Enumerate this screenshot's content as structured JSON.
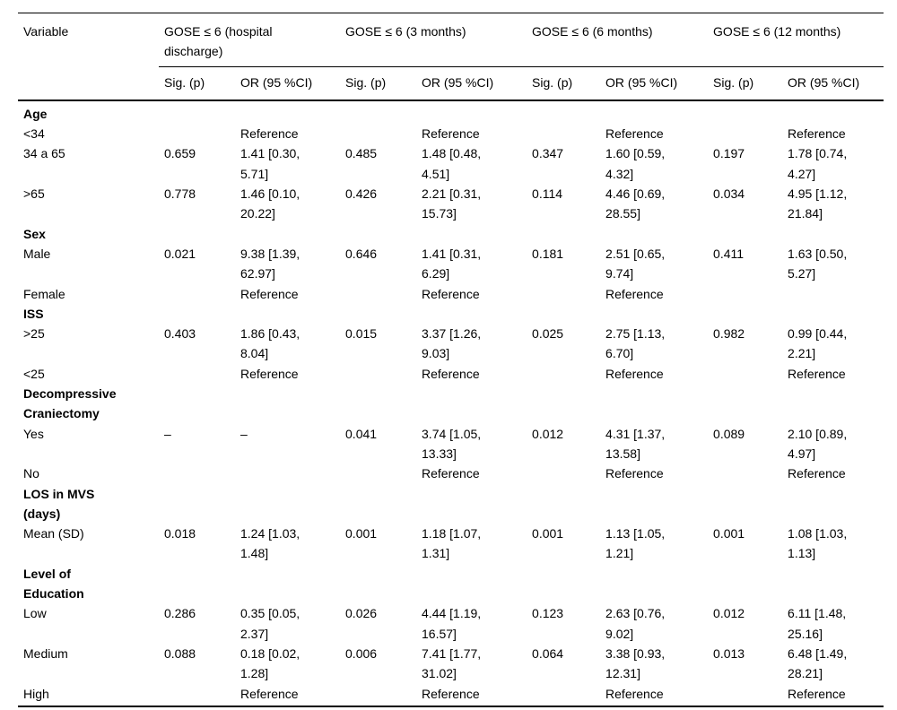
{
  "table": {
    "variable_header": "Variable",
    "col_groups": [
      {
        "label": "GOSE ≤ 6 (hospital\ndischarge)"
      },
      {
        "label": "GOSE ≤ 6 (3 months)"
      },
      {
        "label": "GOSE ≤ 6 (6 months)"
      },
      {
        "label": "GOSE ≤ 6 (12 months)"
      }
    ],
    "sub_headers": [
      "Sig. (p)",
      "OR (95 %CI)"
    ],
    "rows": [
      {
        "label": "Age",
        "section": true
      },
      {
        "label": "<34",
        "cells": [
          "",
          "Reference",
          "",
          "Reference",
          "",
          "Reference",
          "",
          "Reference"
        ]
      },
      {
        "label": "34 a 65",
        "cells": [
          "0.659",
          "1.41 [0.30,\n5.71]",
          "0.485",
          "1.48 [0.48,\n4.51]",
          "0.347",
          "1.60 [0.59,\n4.32]",
          "0.197",
          "1.78 [0.74,\n4.27]"
        ]
      },
      {
        "label": ">65",
        "cells": [
          "0.778",
          "1.46 [0.10,\n20.22]",
          "0.426",
          "2.21 [0.31,\n15.73]",
          "0.114",
          "4.46 [0.69,\n28.55]",
          "0.034",
          "4.95 [1.12,\n21.84]"
        ]
      },
      {
        "label": "Sex",
        "section": true
      },
      {
        "label": "Male",
        "cells": [
          "0.021",
          "9.38 [1.39,\n62.97]",
          "0.646",
          "1.41 [0.31,\n6.29]",
          "0.181",
          "2.51 [0.65,\n9.74]",
          "0.411",
          "1.63 [0.50,\n5.27]"
        ]
      },
      {
        "label": "Female",
        "cells": [
          "",
          "Reference",
          "",
          "Reference",
          "",
          "Reference",
          "",
          ""
        ]
      },
      {
        "label": "ISS",
        "section": true
      },
      {
        "label": ">25",
        "cells": [
          "0.403",
          "1.86 [0.43,\n8.04]",
          "0.015",
          "3.37 [1.26,\n9.03]",
          "0.025",
          "2.75 [1.13,\n6.70]",
          "0.982",
          "0.99 [0.44,\n2.21]"
        ]
      },
      {
        "label": "<25",
        "cells": [
          "",
          "Reference",
          "",
          "Reference",
          "",
          "Reference",
          "",
          "Reference"
        ]
      },
      {
        "label": "Decompressive\nCraniectomy",
        "section": true
      },
      {
        "label": "Yes",
        "cells": [
          "–",
          "–",
          "0.041",
          "3.74 [1.05,\n13.33]",
          "0.012",
          "4.31 [1.37,\n13.58]",
          "0.089",
          "2.10 [0.89,\n4.97]"
        ]
      },
      {
        "label": "No",
        "cells": [
          "",
          "",
          "",
          "Reference",
          "",
          "Reference",
          "",
          "Reference"
        ]
      },
      {
        "label": "LOS in MVS\n(days)",
        "section": true
      },
      {
        "label": "Mean (SD)",
        "cells": [
          "0.018",
          "1.24 [1.03,\n1.48]",
          "0.001",
          "1.18 [1.07,\n1.31]",
          "0.001",
          "1.13 [1.05,\n1.21]",
          "0.001",
          "1.08 [1.03,\n1.13]"
        ]
      },
      {
        "label": "Level of\nEducation",
        "section": true
      },
      {
        "label": "Low",
        "cells": [
          "0.286",
          "0.35 [0.05,\n2.37]",
          "0.026",
          "4.44 [1.19,\n16.57]",
          "0.123",
          "2.63 [0.76,\n9.02]",
          "0.012",
          "6.11 [1.48,\n25.16]"
        ]
      },
      {
        "label": "Medium",
        "cells": [
          "0.088",
          "0.18 [0.02,\n1.28]",
          "0.006",
          "7.41 [1.77,\n31.02]",
          "0.064",
          "3.38 [0.93,\n12.31]",
          "0.013",
          "6.48 [1.49,\n28.21]"
        ]
      },
      {
        "label": "High",
        "cells": [
          "",
          "Reference",
          "",
          "Reference",
          "",
          "Reference",
          "",
          "Reference"
        ]
      }
    ]
  }
}
